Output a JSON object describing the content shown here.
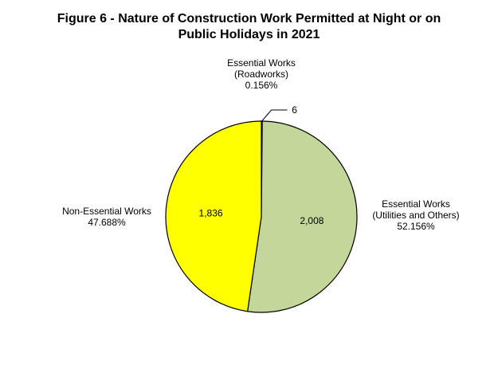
{
  "chart_data": {
    "type": "pie",
    "title_line1": "Figure 6 - Nature of Construction Work Permitted at Night or on",
    "title_line2": "Public Holidays in 2021",
    "slices": [
      {
        "label_lines": [
          "Essential Works",
          "(Roadworks)"
        ],
        "value": 6,
        "value_label": "6",
        "percent": "0.156%",
        "color": "#ffffff"
      },
      {
        "label_lines": [
          "Essential Works",
          "(Utilities and Others)"
        ],
        "value": 2008,
        "value_label": "2,008",
        "percent": "52.156%",
        "color": "#c4d79b"
      },
      {
        "label_lines": [
          "Non-Essential Works"
        ],
        "value": 1836,
        "value_label": "1,836",
        "percent": "47.688%",
        "color": "#ffff00"
      }
    ],
    "legend": "none"
  }
}
